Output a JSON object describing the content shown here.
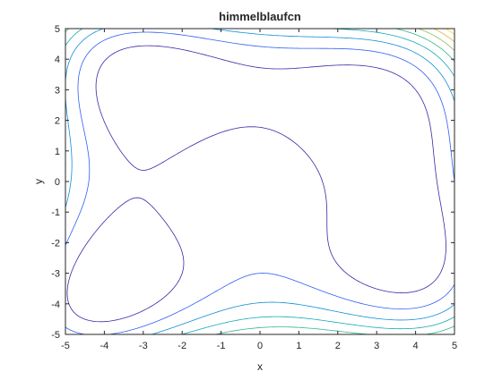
{
  "chart_data": {
    "type": "contour",
    "title": "himmelblaufcn",
    "xlabel": "x",
    "ylabel": "y",
    "xlim": [
      -5,
      5
    ],
    "ylim": [
      -5,
      5
    ],
    "xticks": [
      -5,
      -4,
      -3,
      -2,
      -1,
      0,
      1,
      2,
      3,
      4,
      5
    ],
    "yticks": [
      -5,
      -4,
      -3,
      -2,
      -1,
      0,
      1,
      2,
      3,
      4,
      5
    ],
    "xtick_labels": [
      "-5",
      "-4",
      "-3",
      "-2",
      "-1",
      "0",
      "1",
      "2",
      "3",
      "4",
      "5"
    ],
    "ytick_labels": [
      "-5",
      "-4",
      "-3",
      "-2",
      "-1",
      "0",
      "1",
      "2",
      "3",
      "4",
      "5"
    ],
    "function": "(x^2 + y - 11)^2 + (x + y^2 - 7)^2",
    "levels": [
      100,
      200,
      300,
      400,
      500,
      600,
      700,
      800
    ],
    "level_colors": [
      "#3e26a8",
      "#2f5ef5",
      "#0f8ed8",
      "#12a9b6",
      "#33b789",
      "#8bbf50",
      "#dcb82f",
      "#f9d526"
    ],
    "grid": false,
    "box": true
  },
  "colors": {
    "axes": "#262626",
    "background": "#ffffff"
  }
}
